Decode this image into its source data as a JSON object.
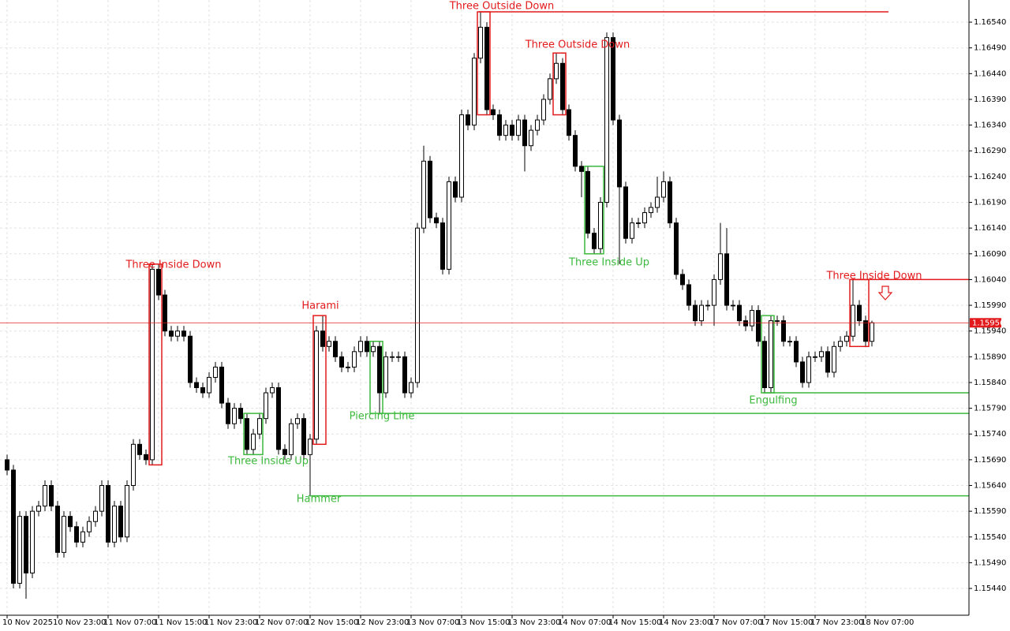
{
  "chart_data": {
    "type": "candlestick",
    "categories": [
      "10 Nov 2025",
      null,
      null,
      null,
      null,
      null,
      null,
      null,
      "10 Nov 23:00",
      null,
      null,
      null,
      null,
      null,
      null,
      null,
      "11 Nov 07:00",
      null,
      null,
      null,
      null,
      null,
      null,
      null,
      "11 Nov 15:00",
      null,
      null,
      null,
      null,
      null,
      null,
      null,
      "11 Nov 23:00",
      null,
      null,
      null,
      null,
      null,
      null,
      null,
      "12 Nov 07:00",
      null,
      null,
      null,
      null,
      null,
      null,
      null,
      "12 Nov 15:00",
      null,
      null,
      null,
      null,
      null,
      null,
      null,
      "12 Nov 23:00",
      null,
      null,
      null,
      null,
      null,
      null,
      null,
      "13 Nov 07:00",
      null,
      null,
      null,
      null,
      null,
      null,
      null,
      "13 Nov 15:00",
      null,
      null,
      null,
      null,
      null,
      null,
      null,
      "13 Nov 23:00",
      null,
      null,
      null,
      null,
      null,
      null,
      null,
      "14 Nov 07:00",
      null,
      null,
      null,
      null,
      null,
      null,
      null,
      "14 Nov 15:00",
      null,
      null,
      null,
      null,
      null,
      null,
      null,
      "14 Nov 23:00",
      null,
      null,
      null,
      null,
      null,
      null,
      null,
      "17 Nov 07:00",
      null,
      null,
      null,
      null,
      null,
      null,
      null,
      "17 Nov 15:00",
      null,
      null,
      null,
      null,
      null,
      null,
      null,
      "17 Nov 23:00",
      null,
      null,
      null,
      null,
      null,
      null,
      null,
      "18 Nov 07:00",
      null
    ],
    "open": [
      1.1569,
      1.1567,
      1.1545,
      1.1558,
      1.1547,
      1.1559,
      1.156,
      1.1564,
      1.156,
      1.1551,
      1.1558,
      1.1556,
      1.1553,
      1.1555,
      1.1557,
      1.1559,
      1.1564,
      1.1553,
      1.156,
      1.1554,
      1.1564,
      1.1572,
      1.157,
      1.1569,
      1.1606,
      1.1601,
      1.1594,
      1.1593,
      1.1594,
      1.1593,
      1.1584,
      1.1583,
      1.1582,
      1.1585,
      1.1587,
      1.158,
      1.1576,
      1.1579,
      1.1577,
      1.1571,
      1.1574,
      1.1577,
      1.1582,
      1.1583,
      1.1571,
      1.157,
      1.1576,
      1.1577,
      1.157,
      1.1573,
      1.1594,
      1.1591,
      1.1592,
      1.1589,
      1.1587,
      1.1587,
      1.159,
      1.1592,
      1.159,
      1.1591,
      1.1582,
      1.1589,
      1.1589,
      1.1589,
      1.1582,
      1.1584,
      1.1614,
      1.1627,
      1.1616,
      1.1615,
      1.1606,
      1.1623,
      1.162,
      1.1636,
      1.1634,
      1.1647,
      1.1653,
      1.1637,
      1.1636,
      1.1632,
      1.1634,
      1.1632,
      1.1635,
      1.163,
      1.1633,
      1.1635,
      1.1639,
      1.1643,
      1.1646,
      1.1637,
      1.1632,
      1.1626,
      1.1625,
      1.1613,
      1.161,
      1.1619,
      1.1651,
      1.1635,
      1.1622,
      1.1612,
      1.1615,
      1.1615,
      1.1617,
      1.1618,
      1.162,
      1.1623,
      1.1615,
      1.1605,
      1.1603,
      1.1599,
      1.1596,
      1.1599,
      1.1599,
      1.1604,
      1.1609,
      1.1599,
      1.1599,
      1.1596,
      1.1595,
      1.1598,
      1.1592,
      1.1583,
      1.1596,
      1.1596,
      1.1592,
      1.1592,
      1.1588,
      1.1584,
      1.1589,
      1.1589,
      1.159,
      1.1586,
      1.1591,
      1.1592,
      1.1593,
      1.1599,
      1.1596,
      1.1592
    ],
    "high": [
      1.157,
      1.1568,
      1.1559,
      1.1559,
      1.156,
      1.1561,
      1.1565,
      1.1565,
      1.1561,
      1.1559,
      1.1559,
      1.1557,
      1.1556,
      1.1558,
      1.156,
      1.1565,
      1.1565,
      1.1561,
      1.1561,
      1.1565,
      1.1573,
      1.1573,
      1.1571,
      1.1607,
      1.1607,
      1.1602,
      1.1595,
      1.1595,
      1.1595,
      1.1594,
      1.1585,
      1.1584,
      1.1586,
      1.1588,
      1.1588,
      1.1581,
      1.158,
      1.158,
      1.1578,
      1.1575,
      1.1578,
      1.1583,
      1.1584,
      1.1584,
      1.1572,
      1.1577,
      1.1578,
      1.1578,
      1.1574,
      1.1595,
      1.1597,
      1.1593,
      1.1593,
      1.159,
      1.1588,
      1.1591,
      1.1593,
      1.1593,
      1.1592,
      1.1592,
      1.159,
      1.159,
      1.159,
      1.159,
      1.1585,
      1.1615,
      1.163,
      1.1628,
      1.1617,
      1.1616,
      1.1624,
      1.1624,
      1.1637,
      1.1637,
      1.1648,
      1.1656,
      1.1654,
      1.1638,
      1.1637,
      1.1635,
      1.1635,
      1.1636,
      1.1636,
      1.1634,
      1.1636,
      1.164,
      1.1644,
      1.1648,
      1.1647,
      1.1638,
      1.1633,
      1.1627,
      1.1626,
      1.1614,
      1.162,
      1.1652,
      1.1652,
      1.1636,
      1.1623,
      1.1616,
      1.1616,
      1.1618,
      1.1619,
      1.1624,
      1.1625,
      1.1624,
      1.1616,
      1.1606,
      1.1604,
      1.16,
      1.16,
      1.16,
      1.1605,
      1.1615,
      1.1614,
      1.16,
      1.16,
      1.1597,
      1.1599,
      1.1599,
      1.1593,
      1.1597,
      1.1597,
      1.1597,
      1.1593,
      1.1593,
      1.1589,
      1.159,
      1.159,
      1.1591,
      1.1591,
      1.1592,
      1.1593,
      1.1594,
      1.1604,
      1.16,
      1.1597,
      1.1596
    ],
    "low": [
      1.1566,
      1.1544,
      1.1544,
      1.1542,
      1.1546,
      1.1558,
      1.1559,
      1.1559,
      1.155,
      1.155,
      1.1555,
      1.1552,
      1.1552,
      1.1554,
      1.1556,
      1.1558,
      1.1552,
      1.1552,
      1.1553,
      1.1553,
      1.1563,
      1.1569,
      1.1568,
      1.1568,
      1.16,
      1.1593,
      1.1592,
      1.1592,
      1.1592,
      1.1583,
      1.1582,
      1.1581,
      1.1581,
      1.1584,
      1.1579,
      1.1575,
      1.1575,
      1.1576,
      1.157,
      1.157,
      1.1573,
      1.1576,
      1.1581,
      1.157,
      1.1569,
      1.1569,
      1.1575,
      1.1569,
      1.1562,
      1.1572,
      1.159,
      1.159,
      1.1588,
      1.1586,
      1.1586,
      1.1586,
      1.1589,
      1.1589,
      1.1589,
      1.1578,
      1.1581,
      1.1588,
      1.1588,
      1.1581,
      1.1581,
      1.1583,
      1.1613,
      1.1615,
      1.1614,
      1.1605,
      1.1605,
      1.1619,
      1.1619,
      1.1633,
      1.1633,
      1.1646,
      1.1636,
      1.1635,
      1.1631,
      1.1631,
      1.1631,
      1.1631,
      1.1625,
      1.1629,
      1.1632,
      1.1634,
      1.1638,
      1.1642,
      1.1636,
      1.1631,
      1.1625,
      1.162,
      1.1612,
      1.1609,
      1.1609,
      1.1618,
      1.1634,
      1.1607,
      1.1611,
      1.1611,
      1.1614,
      1.1614,
      1.1616,
      1.1617,
      1.1619,
      1.1614,
      1.1604,
      1.1602,
      1.1598,
      1.1595,
      1.1595,
      1.1598,
      1.1595,
      1.1603,
      1.1598,
      1.1598,
      1.1595,
      1.1594,
      1.1594,
      1.1591,
      1.1582,
      1.1582,
      1.1595,
      1.1591,
      1.1591,
      1.1587,
      1.1583,
      1.1583,
      1.1588,
      1.1588,
      1.1585,
      1.1585,
      1.159,
      1.1591,
      1.1592,
      1.1595,
      1.1591,
      1.1591
    ],
    "close": [
      1.1567,
      1.1545,
      1.1558,
      1.1547,
      1.1559,
      1.156,
      1.1564,
      1.156,
      1.1551,
      1.1558,
      1.1556,
      1.1553,
      1.1555,
      1.1557,
      1.1559,
      1.1564,
      1.1553,
      1.156,
      1.1554,
      1.1564,
      1.1572,
      1.157,
      1.1569,
      1.1606,
      1.1601,
      1.1594,
      1.1593,
      1.1594,
      1.1593,
      1.1584,
      1.1583,
      1.1582,
      1.1585,
      1.1587,
      1.158,
      1.1576,
      1.1579,
      1.1577,
      1.1571,
      1.1574,
      1.1577,
      1.1582,
      1.1583,
      1.1571,
      1.157,
      1.1576,
      1.1577,
      1.157,
      1.1573,
      1.1594,
      1.1591,
      1.1592,
      1.1589,
      1.1587,
      1.1587,
      1.159,
      1.1592,
      1.159,
      1.1591,
      1.1582,
      1.1589,
      1.1589,
      1.1589,
      1.1582,
      1.1584,
      1.1614,
      1.1627,
      1.1616,
      1.1615,
      1.1606,
      1.1623,
      1.162,
      1.1636,
      1.1634,
      1.1647,
      1.1653,
      1.1637,
      1.1636,
      1.1632,
      1.1634,
      1.1632,
      1.1635,
      1.163,
      1.1633,
      1.1635,
      1.1639,
      1.1643,
      1.1646,
      1.1637,
      1.1632,
      1.1626,
      1.1625,
      1.1613,
      1.161,
      1.1619,
      1.1651,
      1.1635,
      1.1622,
      1.1612,
      1.1615,
      1.1615,
      1.1617,
      1.1618,
      1.162,
      1.1623,
      1.1615,
      1.1605,
      1.1603,
      1.1599,
      1.1596,
      1.1599,
      1.1599,
      1.1604,
      1.1609,
      1.1599,
      1.1599,
      1.1596,
      1.1595,
      1.1598,
      1.1592,
      1.1583,
      1.1596,
      1.1596,
      1.1592,
      1.1592,
      1.1588,
      1.1584,
      1.1589,
      1.1589,
      1.159,
      1.1586,
      1.1591,
      1.1592,
      1.1593,
      1.1599,
      1.1596,
      1.1592,
      1.15956
    ],
    "up_color": "#ffffff",
    "down_color": "#000000",
    "ylim": [
      1.15388,
      1.16583
    ],
    "yticks": [
      {
        "value": 1.1654,
        "label": "1.16540"
      },
      {
        "value": 1.1649,
        "label": "1.16490"
      },
      {
        "value": 1.1644,
        "label": "1.16440"
      },
      {
        "value": 1.1639,
        "label": "1.16390"
      },
      {
        "value": 1.1634,
        "label": "1.16340"
      },
      {
        "value": 1.1629,
        "label": "1.16290"
      },
      {
        "value": 1.1624,
        "label": "1.16240"
      },
      {
        "value": 1.1619,
        "label": "1.16190"
      },
      {
        "value": 1.1614,
        "label": "1.16140"
      },
      {
        "value": 1.1609,
        "label": "1.16090"
      },
      {
        "value": 1.1604,
        "label": "1.16040"
      },
      {
        "value": 1.1599,
        "label": "1.15990"
      },
      {
        "value": 1.1594,
        "label": "1.15940"
      },
      {
        "value": 1.1589,
        "label": "1.15890"
      },
      {
        "value": 1.1584,
        "label": "1.15840"
      },
      {
        "value": 1.1579,
        "label": "1.15790"
      },
      {
        "value": 1.1574,
        "label": "1.15740"
      },
      {
        "value": 1.1569,
        "label": "1.15690"
      },
      {
        "value": 1.1564,
        "label": "1.15640"
      },
      {
        "value": 1.1559,
        "label": "1.15590"
      },
      {
        "value": 1.1554,
        "label": "1.15540"
      },
      {
        "value": 1.1549,
        "label": "1.15490"
      },
      {
        "value": 1.1544,
        "label": "1.15440"
      }
    ],
    "grid": true,
    "current_price": 1.15956,
    "current_price_color": "#e31a1c",
    "annotations": [
      {
        "text": "Three Outside Down",
        "color": "#e31a1c",
        "level": 1.1656
      },
      {
        "text": "Three Outside Down",
        "color": "#e31a1c"
      },
      {
        "text": "Three Inside Up",
        "color": "#3cb93c"
      },
      {
        "text": "Three Inside Down",
        "color": "#e31a1c"
      },
      {
        "text": "Harami",
        "color": "#e31a1c"
      },
      {
        "text": "Three Inside Up",
        "color": "#3cb93c"
      },
      {
        "text": "Hammer",
        "color": "#3cb93c",
        "level": 1.1562
      },
      {
        "text": "Piercing Line",
        "color": "#3cb93c",
        "level": 1.1578
      },
      {
        "text": "Engulfing",
        "color": "#3cb93c",
        "level": 1.1582
      },
      {
        "text": "Three Inside Down",
        "color": "#e31a1c",
        "level": 1.1604
      }
    ]
  }
}
